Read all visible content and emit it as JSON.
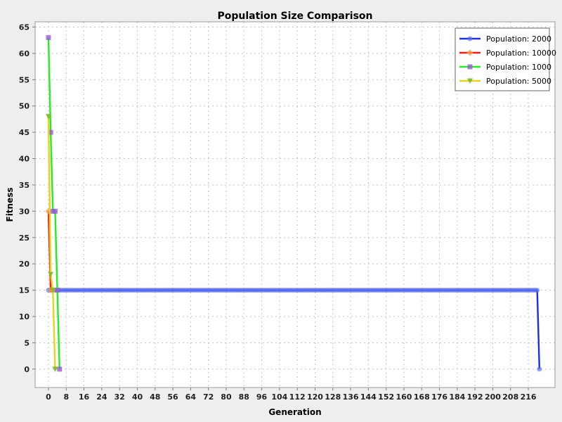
{
  "chart_data": {
    "type": "line",
    "title": "Population Size Comparison",
    "xlabel": "Generation",
    "ylabel": "Fitness",
    "xlim": [
      -6,
      228
    ],
    "ylim": [
      -3.5,
      66
    ],
    "xticks": [
      0,
      8,
      16,
      24,
      32,
      40,
      48,
      56,
      64,
      72,
      80,
      88,
      96,
      104,
      112,
      120,
      128,
      136,
      144,
      152,
      160,
      168,
      176,
      184,
      192,
      200,
      208,
      216
    ],
    "yticks": [
      0,
      5,
      10,
      15,
      20,
      25,
      30,
      35,
      40,
      45,
      50,
      55,
      60,
      65
    ],
    "grid": true,
    "legend_position": "top-right",
    "series": [
      {
        "name": "Population: 2000",
        "color": "#1a2fe6",
        "marker": "circle",
        "x_start": 0,
        "plateau_end": 220,
        "plateau_value": 15,
        "final_x": 221,
        "final_value": 0
      },
      {
        "name": "Population: 10000",
        "color": "#f22010",
        "marker": "diamond",
        "x": [
          0,
          1,
          2
        ],
        "y": [
          30,
          15,
          15
        ]
      },
      {
        "name": "Population: 1000",
        "color": "#22ee22",
        "marker": "square",
        "x": [
          0,
          1,
          2,
          3,
          4,
          5
        ],
        "y": [
          63,
          45,
          30,
          30,
          15,
          0
        ]
      },
      {
        "name": "Population: 5000",
        "color": "#e8d21a",
        "marker": "triangle-down",
        "x": [
          0,
          1,
          2,
          3
        ],
        "y": [
          48,
          18,
          15,
          0
        ]
      }
    ]
  }
}
